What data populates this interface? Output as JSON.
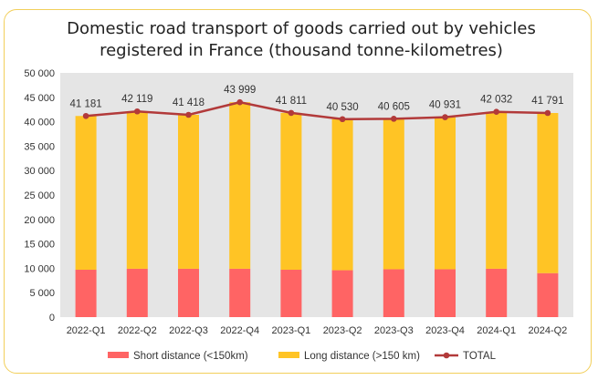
{
  "chart_data": {
    "type": "bar",
    "stacked": true,
    "title": "Domestic road transport of goods carried out by vehicles registered in France (thousand tonne-kilometres)",
    "title_lines": [
      "Domestic road transport of goods carried out by vehicles",
      "registered in France (thousand tonne-kilometres)"
    ],
    "categories": [
      "2022-Q1",
      "2022-Q2",
      "2022-Q3",
      "2022-Q4",
      "2023-Q1",
      "2023-Q2",
      "2023-Q3",
      "2023-Q4",
      "2024-Q1",
      "2024-Q2"
    ],
    "series": [
      {
        "name": "Short distance (<150km)",
        "type": "bar",
        "color": "#ff6464",
        "values": [
          9700,
          9900,
          9900,
          9900,
          9700,
          9600,
          9800,
          9800,
          9900,
          9000
        ]
      },
      {
        "name": "Long distance (>150 km)",
        "type": "bar",
        "color": "#ffc425",
        "values": [
          31481,
          32219,
          31518,
          34099,
          32111,
          30930,
          30805,
          31131,
          32132,
          32791
        ]
      },
      {
        "name": "TOTAL",
        "type": "line",
        "color": "#b23a3a",
        "values": [
          41181,
          42119,
          41418,
          43999,
          41811,
          40530,
          40605,
          40931,
          42032,
          41791
        ]
      }
    ],
    "data_labels": [
      "41 181",
      "42 119",
      "41 418",
      "43 999",
      "41 811",
      "40 530",
      "40 605",
      "40 931",
      "42 032",
      "41 791"
    ],
    "y_ticks": [
      "0",
      "5 000",
      "10 000",
      "15 000",
      "20 000",
      "25 000",
      "30 000",
      "35 000",
      "40 000",
      "45 000",
      "50 000"
    ],
    "ylim": [
      0,
      50000
    ],
    "xlabel": "",
    "ylabel": "",
    "grid": false,
    "plot_background": "#e5e5e5",
    "legend": "bottom"
  }
}
